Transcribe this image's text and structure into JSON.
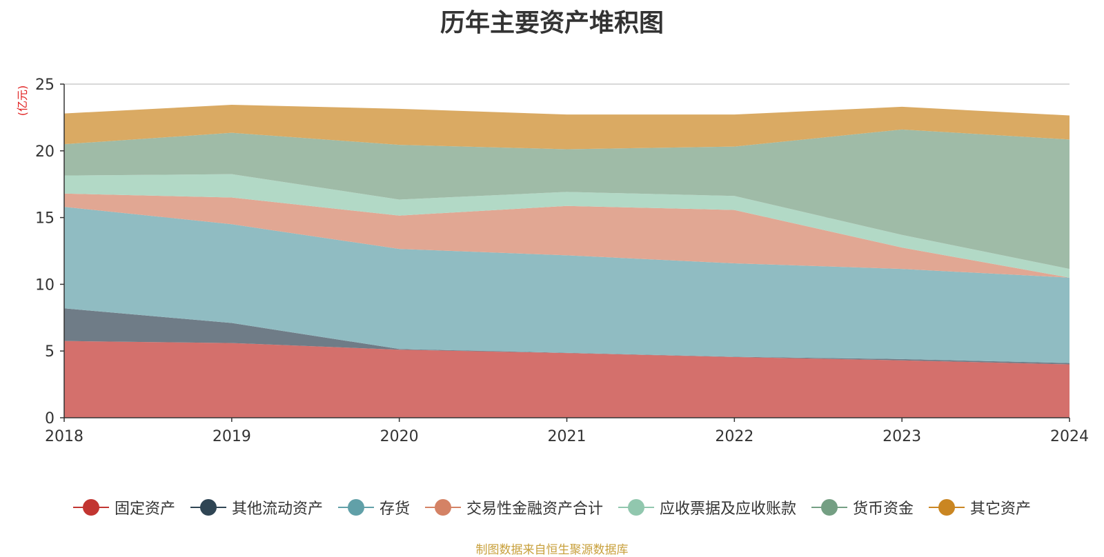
{
  "chart_data": {
    "type": "area",
    "stacked": true,
    "title": "历年主要资产堆积图",
    "unit": "(亿元)",
    "x": [
      "2018",
      "2019",
      "2020",
      "2021",
      "2022",
      "2023",
      "2024"
    ],
    "ylim": [
      0,
      25
    ],
    "yticks": [
      "0",
      "5",
      "10",
      "15",
      "20",
      "25"
    ],
    "grid": true,
    "legend_position": "bottom",
    "series": [
      {
        "name": "固定资产",
        "color": "#c23531",
        "fill": "#d4706c",
        "values": [
          5.75,
          5.6,
          5.1,
          4.85,
          4.55,
          4.3,
          4.0
        ]
      },
      {
        "name": "其他流动资产",
        "color": "#2f4554",
        "fill": "#6f7c87",
        "values": [
          2.45,
          1.5,
          0.05,
          0.02,
          0.02,
          0.1,
          0.1
        ]
      },
      {
        "name": "存货",
        "color": "#61a0a8",
        "fill": "#90bcc2",
        "values": [
          7.6,
          7.4,
          7.5,
          7.3,
          7.0,
          6.75,
          6.4
        ]
      },
      {
        "name": "交易性金融资产合计",
        "color": "#d48265",
        "fill": "#e1a793",
        "values": [
          1.0,
          2.0,
          2.5,
          3.7,
          4.0,
          1.6,
          0.0
        ]
      },
      {
        "name": "应收票据及应收账款",
        "color": "#91c7ae",
        "fill": "#b2d9c6",
        "values": [
          1.35,
          1.75,
          1.2,
          1.05,
          1.05,
          0.95,
          0.65
        ]
      },
      {
        "name": "货币资金",
        "color": "#749f83",
        "fill": "#9fbba7",
        "values": [
          2.35,
          3.1,
          4.1,
          3.2,
          3.7,
          7.9,
          9.7
        ]
      },
      {
        "name": "其它资产",
        "color": "#ca8622",
        "fill": "#daaa63",
        "values": [
          2.3,
          2.1,
          2.7,
          2.6,
          2.4,
          1.7,
          1.8
        ]
      }
    ]
  },
  "footer": {
    "source": "制图数据来自恒生聚源数据库"
  }
}
